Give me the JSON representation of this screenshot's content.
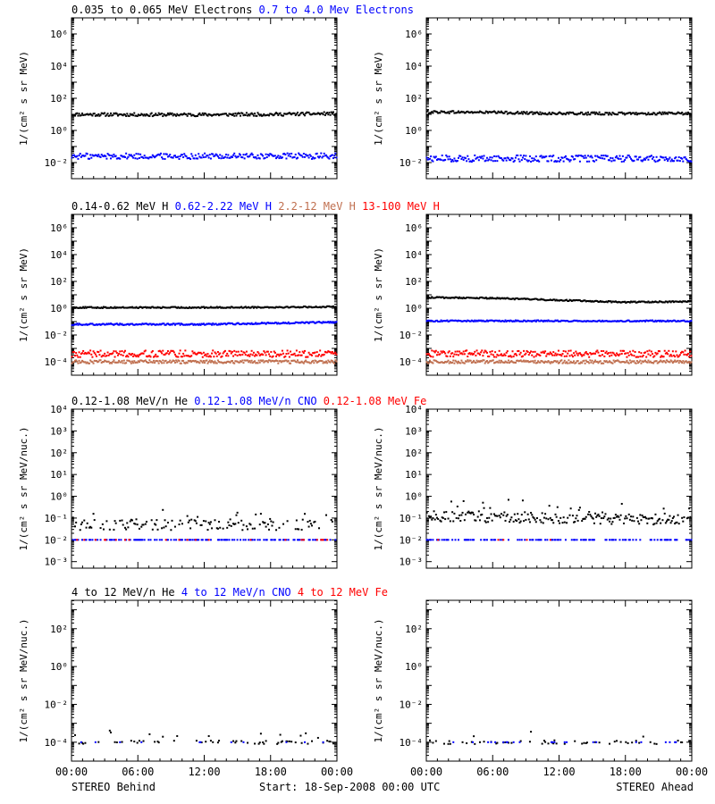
{
  "footer": {
    "left": "STEREO Behind",
    "center": "Start: 18-Sep-2008 00:00 UTC",
    "right": "STEREO Ahead"
  },
  "colors": {
    "black": "#000000",
    "blue": "#0000ff",
    "brown": "#c07050",
    "red": "#ff0000"
  },
  "chart_data": [
    {
      "type": "scatter",
      "row": "electrons",
      "side": "behind",
      "legend": [
        {
          "text": "0.035 to 0.065 MeV Electrons",
          "color": "#000000"
        },
        {
          "text": "0.7 to 4.0 Mev Electrons",
          "color": "#0000ff"
        }
      ],
      "ylabel": "1/(cm² s sr MeV)",
      "yscale": "log",
      "ylim_exp": [
        -3,
        7
      ],
      "yticks": [
        {
          "exp": -2,
          "label": "10⁻²"
        },
        {
          "exp": 0,
          "label": "10⁰"
        },
        {
          "exp": 2,
          "label": "10²"
        },
        {
          "exp": 4,
          "label": "10⁴"
        },
        {
          "exp": 6,
          "label": "10⁶"
        }
      ],
      "xlim_hours": [
        0,
        24
      ],
      "xticks": [
        "00:00",
        "06:00",
        "12:00",
        "18:00",
        "00:00"
      ],
      "show_xticklabels": false,
      "series": [
        {
          "name": "0.035 to 0.065 MeV Electrons",
          "color": "#000000",
          "exp_points": [
            [
              0,
              1.0
            ],
            [
              6,
              0.98
            ],
            [
              12,
              0.98
            ],
            [
              18,
              1.0
            ],
            [
              24,
              1.05
            ]
          ],
          "noise": 0.1
        },
        {
          "name": "0.7 to 4.0 Mev Electrons",
          "color": "#0000ff",
          "exp_points": [
            [
              0,
              -1.6
            ],
            [
              12,
              -1.6
            ],
            [
              24,
              -1.6
            ]
          ],
          "noise": 0.18
        }
      ]
    },
    {
      "type": "scatter",
      "row": "electrons",
      "side": "ahead",
      "legend": [],
      "ylabel": "1/(cm² s sr MeV)",
      "yscale": "log",
      "ylim_exp": [
        -3,
        7
      ],
      "yticks": [
        {
          "exp": -2,
          "label": "10⁻²"
        },
        {
          "exp": 0,
          "label": "10⁰"
        },
        {
          "exp": 2,
          "label": "10²"
        },
        {
          "exp": 4,
          "label": "10⁴"
        },
        {
          "exp": 6,
          "label": "10⁶"
        }
      ],
      "xlim_hours": [
        0,
        24
      ],
      "xticks": [
        "00:00",
        "06:00",
        "12:00",
        "18:00",
        "00:00"
      ],
      "show_xticklabels": false,
      "series": [
        {
          "name": "0.035 to 0.065 MeV Electrons",
          "color": "#000000",
          "exp_points": [
            [
              0,
              1.15
            ],
            [
              6,
              1.12
            ],
            [
              12,
              1.05
            ],
            [
              18,
              1.05
            ],
            [
              24,
              1.05
            ]
          ],
          "noise": 0.08
        },
        {
          "name": "0.7 to 4.0 Mev Electrons",
          "color": "#0000ff",
          "exp_points": [
            [
              0,
              -1.75
            ],
            [
              12,
              -1.75
            ],
            [
              24,
              -1.75
            ]
          ],
          "noise": 0.2
        }
      ]
    },
    {
      "type": "scatter",
      "row": "protons",
      "side": "behind",
      "legend": [
        {
          "text": "0.14-0.62 MeV H",
          "color": "#000000"
        },
        {
          "text": "0.62-2.22 MeV H",
          "color": "#0000ff"
        },
        {
          "text": "2.2-12 MeV H",
          "color": "#c07050"
        },
        {
          "text": "13-100 MeV H",
          "color": "#ff0000"
        }
      ],
      "ylabel": "1/(cm² s sr MeV)",
      "yscale": "log",
      "ylim_exp": [
        -5,
        7
      ],
      "yticks": [
        {
          "exp": -4,
          "label": "10⁻⁴"
        },
        {
          "exp": -2,
          "label": "10⁻²"
        },
        {
          "exp": 0,
          "label": "10⁰"
        },
        {
          "exp": 2,
          "label": "10²"
        },
        {
          "exp": 4,
          "label": "10⁴"
        },
        {
          "exp": 6,
          "label": "10⁶"
        }
      ],
      "xlim_hours": [
        0,
        24
      ],
      "xticks": [
        "00:00",
        "06:00",
        "12:00",
        "18:00",
        "00:00"
      ],
      "show_xticklabels": false,
      "series": [
        {
          "name": "0.14-0.62 MeV H",
          "color": "#000000",
          "exp_points": [
            [
              0,
              0.05
            ],
            [
              12,
              0.05
            ],
            [
              24,
              0.1
            ]
          ],
          "noise": 0.05
        },
        {
          "name": "0.62-2.22 MeV H",
          "color": "#0000ff",
          "exp_points": [
            [
              0,
              -1.2
            ],
            [
              12,
              -1.2
            ],
            [
              24,
              -1.05
            ]
          ],
          "noise": 0.06
        },
        {
          "name": "2.2-12 MeV H",
          "color": "#c07050",
          "exp_points": [
            [
              0,
              -4.0
            ],
            [
              24,
              -4.0
            ]
          ],
          "noise": 0.12
        },
        {
          "name": "13-100 MeV H",
          "color": "#ff0000",
          "exp_points": [
            [
              0,
              -3.4
            ],
            [
              24,
              -3.4
            ]
          ],
          "noise": 0.25
        }
      ]
    },
    {
      "type": "scatter",
      "row": "protons",
      "side": "ahead",
      "legend": [],
      "ylabel": "1/(cm² s sr MeV)",
      "yscale": "log",
      "ylim_exp": [
        -5,
        7
      ],
      "yticks": [
        {
          "exp": -4,
          "label": "10⁻⁴"
        },
        {
          "exp": -2,
          "label": "10⁻²"
        },
        {
          "exp": 0,
          "label": "10⁰"
        },
        {
          "exp": 2,
          "label": "10²"
        },
        {
          "exp": 4,
          "label": "10⁴"
        },
        {
          "exp": 6,
          "label": "10⁶"
        }
      ],
      "xlim_hours": [
        0,
        24
      ],
      "xticks": [
        "00:00",
        "06:00",
        "12:00",
        "18:00",
        "00:00"
      ],
      "show_xticklabels": false,
      "series": [
        {
          "name": "0.14-0.62 MeV H",
          "color": "#000000",
          "exp_points": [
            [
              0,
              0.8
            ],
            [
              6,
              0.75
            ],
            [
              12,
              0.6
            ],
            [
              18,
              0.45
            ],
            [
              24,
              0.5
            ]
          ],
          "noise": 0.05
        },
        {
          "name": "0.62-2.22 MeV H",
          "color": "#0000ff",
          "exp_points": [
            [
              0,
              -0.95
            ],
            [
              24,
              -0.95
            ]
          ],
          "noise": 0.05
        },
        {
          "name": "2.2-12 MeV H",
          "color": "#c07050",
          "exp_points": [
            [
              0,
              -4.0
            ],
            [
              24,
              -4.0
            ]
          ],
          "noise": 0.12
        },
        {
          "name": "13-100 MeV H",
          "color": "#ff0000",
          "exp_points": [
            [
              0,
              -3.4
            ],
            [
              24,
              -3.4
            ]
          ],
          "noise": 0.25
        }
      ]
    },
    {
      "type": "scatter",
      "row": "heavy-low",
      "side": "behind",
      "legend": [
        {
          "text": "0.12-1.08 MeV/n He",
          "color": "#000000"
        },
        {
          "text": "0.12-1.08 MeV/n CNO",
          "color": "#0000ff"
        },
        {
          "text": "0.12-1.08 MeV Fe",
          "color": "#ff0000"
        }
      ],
      "ylabel": "1/(cm² s sr MeV/nuc.)",
      "yscale": "log",
      "ylim_exp": [
        -3.3,
        4
      ],
      "yticks": [
        {
          "exp": -3,
          "label": "10⁻³"
        },
        {
          "exp": -2,
          "label": "10⁻²"
        },
        {
          "exp": -1,
          "label": "10⁻¹"
        },
        {
          "exp": 0,
          "label": "10⁰"
        },
        {
          "exp": 1,
          "label": "10¹"
        },
        {
          "exp": 2,
          "label": "10²"
        },
        {
          "exp": 3,
          "label": "10³"
        },
        {
          "exp": 4,
          "label": "10⁴"
        }
      ],
      "xlim_hours": [
        0,
        24
      ],
      "xticks": [
        "00:00",
        "06:00",
        "12:00",
        "18:00",
        "00:00"
      ],
      "show_xticklabels": false,
      "series": [
        {
          "name": "0.12-1.08 MeV/n He",
          "color": "#000000",
          "exp_points": [
            [
              0,
              -1.3
            ],
            [
              24,
              -1.3
            ]
          ],
          "noise": 0.25,
          "sparse": 0.55
        },
        {
          "name": "0.12-1.08 MeV/n CNO",
          "color": "#0000ff",
          "exp_points": [
            [
              0,
              -2.0
            ],
            [
              24,
              -2.0
            ]
          ],
          "noise": 0.0,
          "sparse": 0.45
        },
        {
          "name": "0.12-1.08 MeV Fe",
          "color": "#ff0000",
          "exp_points": [
            [
              0,
              -2.0
            ],
            [
              24,
              -2.0
            ]
          ],
          "noise": 0.0,
          "sparse": 0.08
        }
      ]
    },
    {
      "type": "scatter",
      "row": "heavy-low",
      "side": "ahead",
      "legend": [],
      "ylabel": "1/(cm² s sr MeV/nuc.)",
      "yscale": "log",
      "ylim_exp": [
        -3.3,
        4
      ],
      "yticks": [
        {
          "exp": -3,
          "label": "10⁻³"
        },
        {
          "exp": -2,
          "label": "10⁻²"
        },
        {
          "exp": -1,
          "label": "10⁻¹"
        },
        {
          "exp": 0,
          "label": "10⁰"
        },
        {
          "exp": 1,
          "label": "10¹"
        },
        {
          "exp": 2,
          "label": "10²"
        },
        {
          "exp": 3,
          "label": "10³"
        },
        {
          "exp": 4,
          "label": "10⁴"
        }
      ],
      "xlim_hours": [
        0,
        24
      ],
      "xticks": [
        "00:00",
        "06:00",
        "12:00",
        "18:00",
        "00:00"
      ],
      "show_xticklabels": false,
      "series": [
        {
          "name": "0.12-1.08 MeV/n He",
          "color": "#000000",
          "exp_points": [
            [
              0,
              -0.9
            ],
            [
              12,
              -1.0
            ],
            [
              24,
              -1.1
            ]
          ],
          "noise": 0.25,
          "sparse": 0.9
        },
        {
          "name": "0.12-1.08 MeV/n CNO",
          "color": "#0000ff",
          "exp_points": [
            [
              0,
              -2.0
            ],
            [
              24,
              -2.0
            ]
          ],
          "noise": 0.0,
          "sparse": 0.45
        },
        {
          "name": "0.12-1.08 MeV Fe",
          "color": "#ff0000",
          "exp_points": [
            [
              0,
              -2.0
            ],
            [
              24,
              -2.0
            ]
          ],
          "noise": 0.0,
          "sparse": 0.04
        }
      ]
    },
    {
      "type": "scatter",
      "row": "heavy-high",
      "side": "behind",
      "legend": [
        {
          "text": "4 to 12 MeV/n He",
          "color": "#000000"
        },
        {
          "text": "4 to 12 MeV/n CNO",
          "color": "#0000ff"
        },
        {
          "text": "4 to 12 MeV Fe",
          "color": "#ff0000"
        }
      ],
      "ylabel": "1/(cm² s sr MeV/nuc.)",
      "yscale": "log",
      "ylim_exp": [
        -5,
        3.5
      ],
      "yticks": [
        {
          "exp": -4,
          "label": "10⁻⁴"
        },
        {
          "exp": -2,
          "label": "10⁻²"
        },
        {
          "exp": 0,
          "label": "10⁰"
        },
        {
          "exp": 2,
          "label": "10²"
        }
      ],
      "xlim_hours": [
        0,
        24
      ],
      "xticks": [
        "00:00",
        "06:00",
        "12:00",
        "18:00",
        "00:00"
      ],
      "show_xticklabels": true,
      "series": [
        {
          "name": "4 to 12 MeV/n He",
          "color": "#000000",
          "exp_points": [
            [
              0,
              -4.0
            ],
            [
              24,
              -4.0
            ]
          ],
          "noise": 0.1,
          "sparse": 0.25
        },
        {
          "name": "4 to 12 MeV/n CNO",
          "color": "#0000ff",
          "exp_points": [
            [
              0,
              -4.0
            ],
            [
              24,
              -4.0
            ]
          ],
          "noise": 0.0,
          "sparse": 0.05
        }
      ]
    },
    {
      "type": "scatter",
      "row": "heavy-high",
      "side": "ahead",
      "legend": [],
      "ylabel": "1/(cm² s sr MeV/nuc.)",
      "yscale": "log",
      "ylim_exp": [
        -5,
        3.5
      ],
      "yticks": [
        {
          "exp": -4,
          "label": "10⁻⁴"
        },
        {
          "exp": -2,
          "label": "10⁻²"
        },
        {
          "exp": 0,
          "label": "10⁰"
        },
        {
          "exp": 2,
          "label": "10²"
        }
      ],
      "xlim_hours": [
        0,
        24
      ],
      "xticks": [
        "00:00",
        "06:00",
        "12:00",
        "18:00",
        "00:00"
      ],
      "show_xticklabels": true,
      "series": [
        {
          "name": "4 to 12 MeV/n He",
          "color": "#000000",
          "exp_points": [
            [
              0,
              -4.0
            ],
            [
              24,
              -4.0
            ]
          ],
          "noise": 0.1,
          "sparse": 0.2
        },
        {
          "name": "4 to 12 MeV/n CNO",
          "color": "#0000ff",
          "exp_points": [
            [
              0,
              -4.0
            ],
            [
              24,
              -4.0
            ]
          ],
          "noise": 0.0,
          "sparse": 0.1
        }
      ]
    }
  ]
}
